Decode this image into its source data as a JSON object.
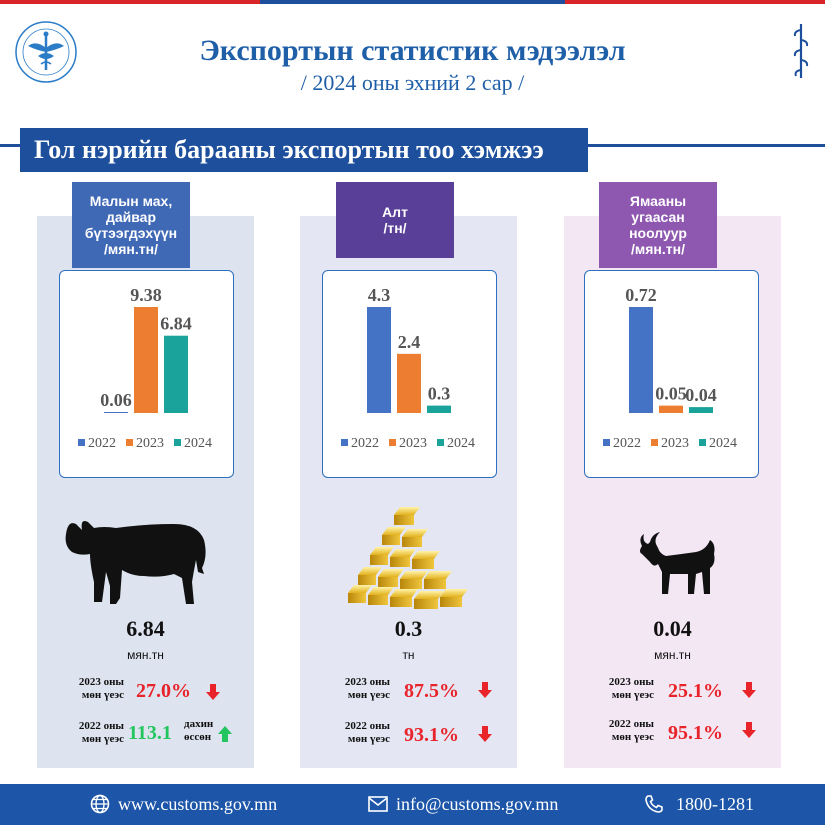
{
  "header": {
    "title": "Экспортын статистик мэдээлэл",
    "subtitle": "/ 2024 оны эхний 2 сар /"
  },
  "banner": {
    "text": "Гол нэрийн барааны экспортын тоо хэмжээ"
  },
  "colors": {
    "series_2022": "#4472c4",
    "series_2023": "#ed7d31",
    "series_2024": "#1aa39a",
    "down": "#e8232a",
    "up": "#22c55e",
    "brand": "#1d4f9c"
  },
  "products": [
    {
      "name": "Малын мах, дайвар бүтээгдэхүүн /мян.тн/",
      "tag_lines": [
        "Малын мах,",
        "дайвар",
        "бүтээгдэхүүн",
        "/мян.тн/"
      ],
      "icon": "cow-icon",
      "value": "6.84",
      "unit": "мян.тн",
      "comparisons": [
        {
          "label_lines": [
            "2023 оны",
            "мөн үеэс"
          ],
          "value": "27.0%",
          "direction": "down"
        },
        {
          "label_lines": [
            "2022 оны",
            "мөн үеэс"
          ],
          "value": "113.1",
          "extra_lines": [
            "дахин",
            "өссөн"
          ],
          "direction": "up"
        }
      ]
    },
    {
      "name": "Алт /тн/",
      "tag_lines": [
        "Алт",
        "/тн/"
      ],
      "icon": "gold-bars-icon",
      "value": "0.3",
      "unit": "тн",
      "comparisons": [
        {
          "label_lines": [
            "2023 оны",
            "мөн үеэс"
          ],
          "value": "87.5%",
          "direction": "down"
        },
        {
          "label_lines": [
            "2022 оны",
            "мөн үеэс"
          ],
          "value": "93.1%",
          "direction": "down"
        }
      ]
    },
    {
      "name": "Ямааны угаасан ноолуур /мян.тн/",
      "tag_lines": [
        "Ямааны",
        "угаасан",
        "ноолуур",
        "/мян.тн/"
      ],
      "icon": "goat-icon",
      "value": "0.04",
      "unit": "мян.тн",
      "comparisons": [
        {
          "label_lines": [
            "2023 оны",
            "мөн үеэс"
          ],
          "value": "25.1%",
          "direction": "down"
        },
        {
          "label_lines": [
            "2022 оны",
            "мөн үеэс"
          ],
          "value": "95.1%",
          "direction": "down"
        }
      ]
    }
  ],
  "chart_data": [
    {
      "type": "bar",
      "categories": [
        "2022",
        "2023",
        "2024"
      ],
      "values": [
        0.06,
        9.38,
        6.84
      ],
      "value_labels": [
        "0.06",
        "9.38",
        "6.84"
      ],
      "legend": [
        "2022",
        "2023",
        "2024"
      ],
      "legend_position": "bottom",
      "ylim": [
        0,
        9.38
      ],
      "grid": false
    },
    {
      "type": "bar",
      "categories": [
        "2022",
        "2023",
        "2024"
      ],
      "values": [
        4.3,
        2.4,
        0.3
      ],
      "value_labels": [
        "4.3",
        "2.4",
        "0.3"
      ],
      "legend": [
        "2022",
        "2023",
        "2024"
      ],
      "legend_position": "bottom",
      "ylim": [
        0,
        4.3
      ],
      "grid": false
    },
    {
      "type": "bar",
      "categories": [
        "2022",
        "2023",
        "2024"
      ],
      "values": [
        0.72,
        0.05,
        0.04
      ],
      "value_labels": [
        "0.72",
        "0.05",
        "0.04"
      ],
      "legend": [
        "2022",
        "2023",
        "2024"
      ],
      "legend_position": "bottom",
      "ylim": [
        0,
        0.72
      ],
      "grid": false
    }
  ],
  "footer": {
    "website": "www.customs.gov.mn",
    "email": "info@customs.gov.mn",
    "phone": "1800-1281",
    "icons": [
      "globe-icon",
      "mail-icon",
      "phone-icon"
    ]
  }
}
